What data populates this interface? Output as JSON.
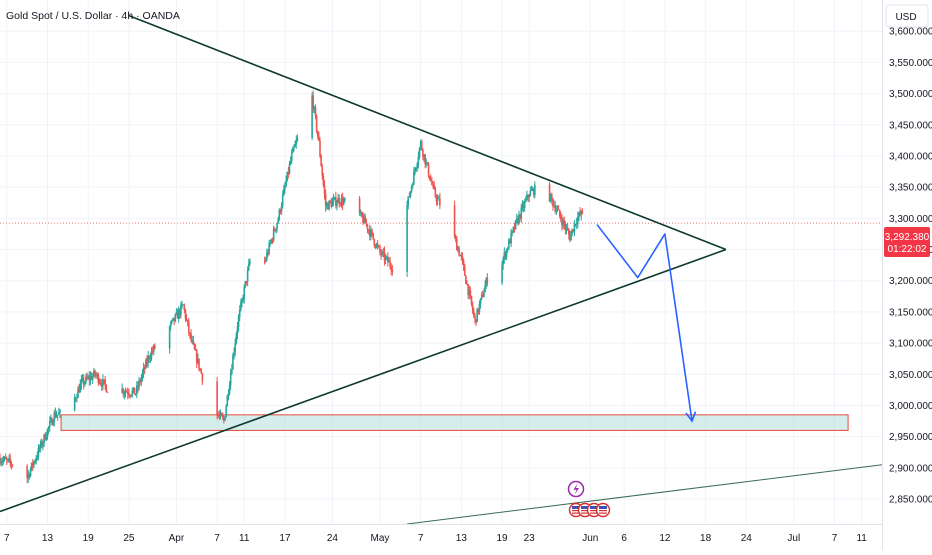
{
  "header": {
    "title": "Gold Spot / U.S. Dollar · 4h · OANDA",
    "currency": "USD"
  },
  "colors": {
    "up": "#26a69a",
    "down": "#ef5350",
    "triangle": "#0f3a2e",
    "forecast_arrow": "#2962ff",
    "zone_fill": "#b2dfdb",
    "zone_border": "#e64a3c",
    "price_tag": "#f23645",
    "axis_text": "#131722",
    "grid": "#f0f3fa",
    "event_purple": "#9c27b0"
  },
  "price_label": {
    "price": "3,292.380",
    "countdown": "01:22:02"
  },
  "event_icons": {
    "flag_icons": 4,
    "lightning_icon": 1
  },
  "chart_data": {
    "type": "candlestick",
    "symbol": "Gold Spot / U.S. Dollar",
    "interval": "4h",
    "source": "OANDA",
    "currency": "USD",
    "current_price": 3292.38,
    "ylim": [
      2810,
      3650
    ],
    "y_ticks": [
      2850,
      2900,
      2950,
      3000,
      3050,
      3100,
      3150,
      3200,
      3250,
      3300,
      3350,
      3400,
      3450,
      3500,
      3550,
      3600
    ],
    "y_tick_labels": [
      "2,850.000",
      "2,900.000",
      "2,950.000",
      "3,000.000",
      "3,050.000",
      "3,100.000",
      "3,150.000",
      "3,200.000",
      "3,250.000",
      "3,300.000",
      "3,350.000",
      "3,400.000",
      "3,450.000",
      "3,500.000",
      "3,550.000",
      "3,600.000"
    ],
    "x_range": [
      "2025-03-06",
      "2025-07-14"
    ],
    "x_ticks": [
      {
        "label": "7",
        "date": "2025-03-07"
      },
      {
        "label": "13",
        "date": "2025-03-13"
      },
      {
        "label": "19",
        "date": "2025-03-19"
      },
      {
        "label": "25",
        "date": "2025-03-25"
      },
      {
        "label": "Apr",
        "date": "2025-04-01"
      },
      {
        "label": "7",
        "date": "2025-04-07"
      },
      {
        "label": "11",
        "date": "2025-04-11"
      },
      {
        "label": "17",
        "date": "2025-04-17"
      },
      {
        "label": "24",
        "date": "2025-04-24"
      },
      {
        "label": "May",
        "date": "2025-05-01"
      },
      {
        "label": "7",
        "date": "2025-05-07"
      },
      {
        "label": "13",
        "date": "2025-05-13"
      },
      {
        "label": "19",
        "date": "2025-05-19"
      },
      {
        "label": "23",
        "date": "2025-05-23"
      },
      {
        "label": "Jun",
        "date": "2025-06-01"
      },
      {
        "label": "6",
        "date": "2025-06-06"
      },
      {
        "label": "12",
        "date": "2025-06-12"
      },
      {
        "label": "18",
        "date": "2025-06-18"
      },
      {
        "label": "24",
        "date": "2025-06-24"
      },
      {
        "label": "Jul",
        "date": "2025-07-01"
      },
      {
        "label": "7",
        "date": "2025-07-07"
      },
      {
        "label": "11",
        "date": "2025-07-11"
      }
    ],
    "price_path": [
      [
        "2025-03-06",
        2915
      ],
      [
        "2025-03-08",
        2905
      ],
      [
        "2025-03-10",
        2885
      ],
      [
        "2025-03-12",
        2935
      ],
      [
        "2025-03-14",
        2985
      ],
      [
        "2025-03-16",
        2988
      ],
      [
        "2025-03-18",
        3035
      ],
      [
        "2025-03-20",
        3050
      ],
      [
        "2025-03-22",
        3025
      ],
      [
        "2025-03-24",
        3025
      ],
      [
        "2025-03-26",
        3020
      ],
      [
        "2025-03-28",
        3080
      ],
      [
        "2025-03-31",
        3125
      ],
      [
        "2025-04-02",
        3160
      ],
      [
        "2025-04-03",
        3110
      ],
      [
        "2025-04-05",
        3040
      ],
      [
        "2025-04-07",
        2985
      ],
      [
        "2025-04-08",
        2975
      ],
      [
        "2025-04-10",
        3130
      ],
      [
        "2025-04-12",
        3240
      ],
      [
        "2025-04-14",
        3230
      ],
      [
        "2025-04-16",
        3300
      ],
      [
        "2025-04-18",
        3400
      ],
      [
        "2025-04-21",
        3495
      ],
      [
        "2025-04-22",
        3420
      ],
      [
        "2025-04-23",
        3320
      ],
      [
        "2025-04-25",
        3330
      ],
      [
        "2025-04-27",
        3320
      ],
      [
        "2025-04-29",
        3290
      ],
      [
        "2025-05-01",
        3245
      ],
      [
        "2025-05-03",
        3220
      ],
      [
        "2025-05-05",
        3320
      ],
      [
        "2025-05-07",
        3420
      ],
      [
        "2025-05-09",
        3340
      ],
      [
        "2025-05-11",
        3300
      ],
      [
        "2025-05-13",
        3235
      ],
      [
        "2025-05-15",
        3135
      ],
      [
        "2025-05-17",
        3210
      ],
      [
        "2025-05-19",
        3230
      ],
      [
        "2025-05-21",
        3290
      ],
      [
        "2025-05-23",
        3340
      ],
      [
        "2025-05-25",
        3355
      ],
      [
        "2025-05-27",
        3315
      ],
      [
        "2025-05-29",
        3270
      ],
      [
        "2025-05-30",
        3300
      ],
      [
        "2025-05-31",
        3310
      ],
      [
        "2025-06-01",
        3292.38
      ]
    ],
    "annotations": {
      "triangle_upper_line": [
        [
          "2025-03-25",
          3625
        ],
        [
          "2025-06-21",
          3250
        ]
      ],
      "triangle_lower_line": [
        [
          "2025-03-06",
          2830
        ],
        [
          "2025-06-21",
          3250
        ]
      ],
      "long_trendline": [
        [
          "2025-05-05",
          2810
        ],
        [
          "2025-07-14",
          2905
        ]
      ],
      "support_zone": {
        "from": "2025-03-15",
        "to": "2025-07-09",
        "low": 2960,
        "high": 2985
      },
      "forecast_path": [
        [
          "2025-06-02",
          3290
        ],
        [
          "2025-06-08",
          3205
        ],
        [
          "2025-06-12",
          3275
        ],
        [
          "2025-06-16",
          2975
        ]
      ]
    }
  }
}
